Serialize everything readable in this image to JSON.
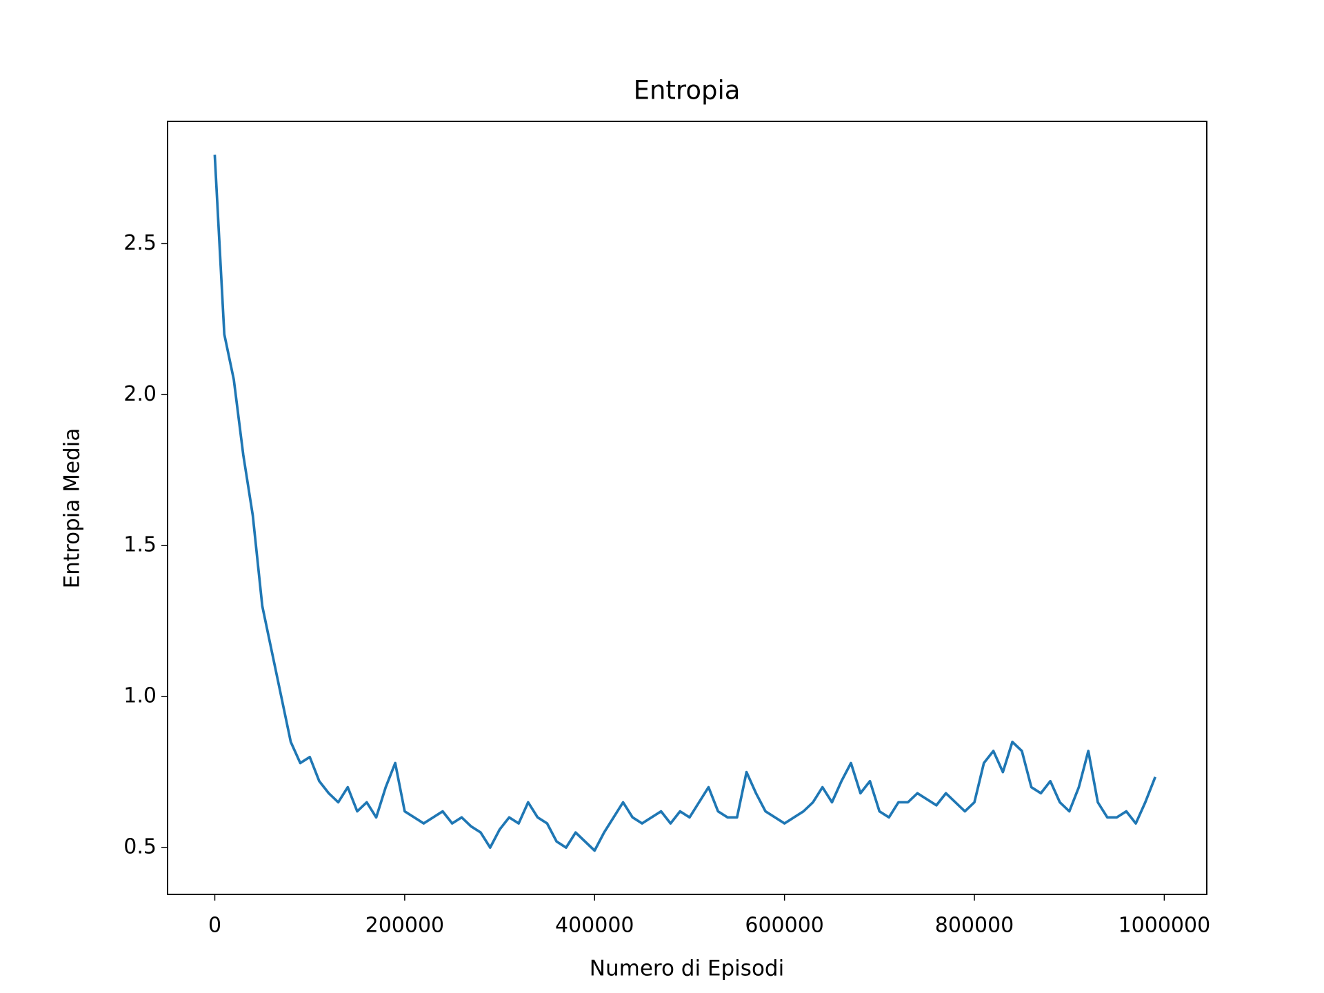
{
  "chart_data": {
    "type": "line",
    "title": "Entropia",
    "xlabel": "Numero di Episodi",
    "ylabel": "Entropia Media",
    "x": [
      0,
      10000,
      20000,
      30000,
      40000,
      50000,
      60000,
      70000,
      80000,
      90000,
      100000,
      110000,
      120000,
      130000,
      140000,
      150000,
      160000,
      170000,
      180000,
      190000,
      200000,
      210000,
      220000,
      230000,
      240000,
      250000,
      260000,
      270000,
      280000,
      290000,
      300000,
      310000,
      320000,
      330000,
      340000,
      350000,
      360000,
      370000,
      380000,
      390000,
      400000,
      410000,
      420000,
      430000,
      440000,
      450000,
      460000,
      470000,
      480000,
      490000,
      500000,
      510000,
      520000,
      530000,
      540000,
      550000,
      560000,
      570000,
      580000,
      590000,
      600000,
      610000,
      620000,
      630000,
      640000,
      650000,
      660000,
      670000,
      680000,
      690000,
      700000,
      710000,
      720000,
      730000,
      740000,
      750000,
      760000,
      770000,
      780000,
      790000,
      800000,
      810000,
      820000,
      830000,
      840000,
      850000,
      860000,
      870000,
      880000,
      890000,
      900000,
      910000,
      920000,
      930000,
      940000,
      950000,
      960000,
      970000,
      980000,
      990000
    ],
    "series": [
      {
        "name": "Entropia",
        "color": "#1f77b4",
        "values": [
          2.79,
          2.2,
          2.05,
          1.8,
          1.6,
          1.3,
          1.15,
          1.0,
          0.85,
          0.78,
          0.8,
          0.72,
          0.68,
          0.65,
          0.7,
          0.62,
          0.65,
          0.6,
          0.7,
          0.78,
          0.62,
          0.6,
          0.58,
          0.6,
          0.62,
          0.58,
          0.6,
          0.57,
          0.55,
          0.5,
          0.56,
          0.6,
          0.58,
          0.65,
          0.6,
          0.58,
          0.52,
          0.5,
          0.55,
          0.52,
          0.49,
          0.55,
          0.6,
          0.65,
          0.6,
          0.58,
          0.6,
          0.62,
          0.58,
          0.62,
          0.6,
          0.65,
          0.7,
          0.62,
          0.6,
          0.6,
          0.75,
          0.68,
          0.62,
          0.6,
          0.58,
          0.6,
          0.62,
          0.65,
          0.7,
          0.65,
          0.72,
          0.78,
          0.68,
          0.72,
          0.62,
          0.6,
          0.65,
          0.65,
          0.68,
          0.66,
          0.64,
          0.68,
          0.65,
          0.62,
          0.65,
          0.78,
          0.82,
          0.75,
          0.85,
          0.82,
          0.7,
          0.68,
          0.72,
          0.65,
          0.62,
          0.7,
          0.82,
          0.65,
          0.6,
          0.6,
          0.62,
          0.58,
          0.65,
          0.73
        ]
      }
    ],
    "xlim": [
      -49750,
      1044750
    ],
    "ylim": [
      0.345,
      2.905
    ],
    "xticks": [
      0,
      200000,
      400000,
      600000,
      800000,
      1000000
    ],
    "yticks": [
      {
        "value": 0.5,
        "label": "0.5"
      },
      {
        "value": 1.0,
        "label": "1.0"
      },
      {
        "value": 1.5,
        "label": "1.5"
      },
      {
        "value": 2.0,
        "label": "2.0"
      },
      {
        "value": 2.5,
        "label": "2.5"
      }
    ],
    "grid": false
  }
}
